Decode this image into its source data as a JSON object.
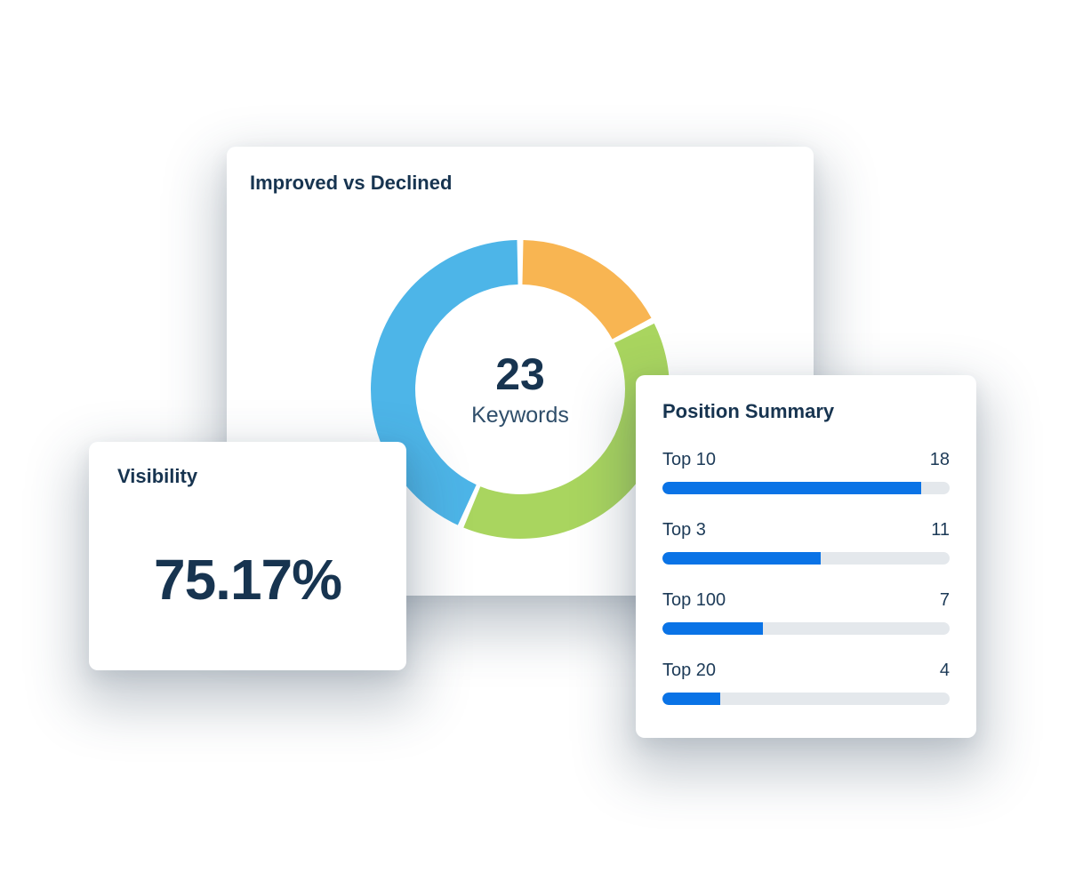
{
  "colors": {
    "navy_text": "#173450",
    "center_label_text": "#2F4E6A",
    "donut_blue": "#4DB5E8",
    "donut_orange": "#F8B552",
    "donut_green": "#A9D55F",
    "bar_fill": "#0A73E6",
    "bar_track": "#E4E8EC",
    "card_background": "#FFFFFF"
  },
  "cards": {
    "improved_vs_declined": {
      "title": "Improved vs Declined",
      "center_value": "23",
      "center_label": "Keywords"
    },
    "visibility": {
      "title": "Visibility",
      "value": "75.17%"
    },
    "position_summary": {
      "title": "Position Summary",
      "rows": [
        {
          "label": "Top 10",
          "value": "18",
          "percent": 90
        },
        {
          "label": "Top 3",
          "value": "11",
          "percent": 55
        },
        {
          "label": "Top 100",
          "value": "7",
          "percent": 35
        },
        {
          "label": "Top 20",
          "value": "4",
          "percent": 20
        }
      ]
    }
  },
  "chart_data": [
    {
      "type": "pie",
      "subtype": "donut",
      "title": "Improved vs Declined",
      "center_text": [
        "23",
        "Keywords"
      ],
      "total": 23,
      "start_angle_deg": 0,
      "direction": "clockwise",
      "gap_deg": 2.4,
      "outer_radius": 168,
      "inner_radius": 118,
      "segments": [
        {
          "name": "orange-segment",
          "value": 4,
          "color": "#F8B552"
        },
        {
          "name": "green-segment",
          "value": 9,
          "color": "#A9D55F"
        },
        {
          "name": "blue-segment",
          "value": 10,
          "color": "#4DB5E8"
        }
      ]
    },
    {
      "type": "bar",
      "title": "Position Summary",
      "orientation": "horizontal",
      "categories": [
        "Top 10",
        "Top 3",
        "Top 100",
        "Top 20"
      ],
      "values": [
        18,
        11,
        7,
        4
      ],
      "xlim": [
        0,
        20
      ],
      "bar_color": "#0A73E6",
      "track_color": "#E4E8EC"
    },
    {
      "type": "kpi",
      "title": "Visibility",
      "value": "75.17%"
    }
  ]
}
